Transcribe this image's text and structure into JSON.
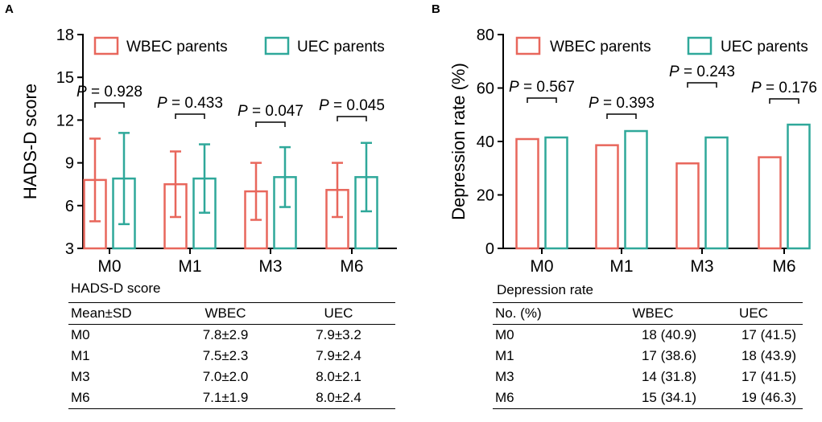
{
  "colors": {
    "wbec": "#e8675c",
    "uec": "#2fa89a"
  },
  "chart_data": [
    {
      "panel_label": "A",
      "type": "bar",
      "ylabel": "HADS-D score",
      "ylim": [
        3,
        18
      ],
      "yticks": [
        3,
        6,
        9,
        12,
        15,
        18
      ],
      "categories": [
        "M0",
        "M1",
        "M3",
        "M6"
      ],
      "series": [
        {
          "name": "WBEC parents",
          "values": [
            7.8,
            7.5,
            7.0,
            7.1
          ],
          "error": [
            2.9,
            2.3,
            2.0,
            1.9
          ]
        },
        {
          "name": "UEC parents",
          "values": [
            7.9,
            7.9,
            8.0,
            8.0
          ],
          "error": [
            3.2,
            2.4,
            2.1,
            2.4
          ]
        }
      ],
      "p_values": [
        "P = 0.928",
        "P = 0.433",
        "P = 0.047",
        "P = 0.045"
      ],
      "legend": "top"
    },
    {
      "panel_label": "B",
      "type": "bar",
      "ylabel": "Depression rate (%)",
      "ylim": [
        0,
        80
      ],
      "yticks": [
        0,
        20,
        40,
        60,
        80
      ],
      "categories": [
        "M0",
        "M1",
        "M3",
        "M6"
      ],
      "series": [
        {
          "name": "WBEC parents",
          "values": [
            40.9,
            38.6,
            31.8,
            34.1
          ]
        },
        {
          "name": "UEC parents",
          "values": [
            41.5,
            43.9,
            41.5,
            46.3
          ]
        }
      ],
      "p_values": [
        "P = 0.567",
        "P = 0.393",
        "P = 0.243",
        "P = 0.176"
      ],
      "legend": "top"
    }
  ],
  "tables": {
    "a": {
      "caption": "HADS-D score",
      "headers": [
        "Mean±SD",
        "WBEC",
        "UEC"
      ],
      "rows": [
        [
          "M0",
          "7.8±2.9",
          "7.9±3.2"
        ],
        [
          "M1",
          "7.5±2.3",
          "7.9±2.4"
        ],
        [
          "M3",
          "7.0±2.0",
          "8.0±2.1"
        ],
        [
          "M6",
          "7.1±1.9",
          "8.0±2.4"
        ]
      ]
    },
    "b": {
      "caption": "Depression rate",
      "headers": [
        "No. (%)",
        "WBEC",
        "UEC"
      ],
      "rows": [
        [
          "M0",
          "18 (40.9)",
          "17 (41.5)"
        ],
        [
          "M1",
          "17 (38.6)",
          "18 (43.9)"
        ],
        [
          "M3",
          "14 (31.8)",
          "17 (41.5)"
        ],
        [
          "M6",
          "15 (34.1)",
          "19 (46.3)"
        ]
      ]
    }
  }
}
